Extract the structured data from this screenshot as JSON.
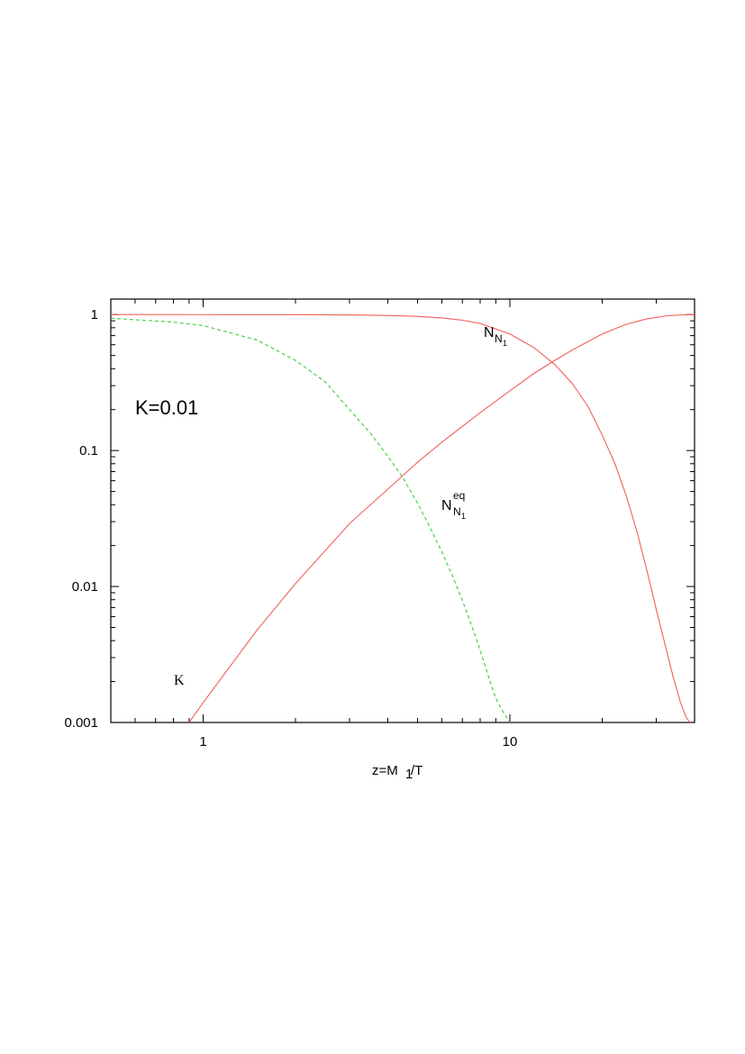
{
  "chart_data": {
    "type": "line",
    "title": "",
    "xlabel": "z=M",
    "xlabel_sub": "1",
    "xlabel_tail": "/T",
    "ylabel": "",
    "x_scale": "log",
    "y_scale": "log",
    "xlim": [
      0.5,
      40
    ],
    "ylim": [
      0.001,
      1.3
    ],
    "x_ticks": [
      {
        "value": 1,
        "label": "1"
      },
      {
        "value": 10,
        "label": "10"
      }
    ],
    "y_ticks": [
      {
        "value": 1,
        "label": "1"
      },
      {
        "value": 0.1,
        "label": "0.1"
      },
      {
        "value": 0.01,
        "label": "0.01"
      },
      {
        "value": 0.001,
        "label": "0.001"
      }
    ],
    "annotation": "K=0.01",
    "series": [
      {
        "name": "N_N1",
        "label_main": "N",
        "label_sub": "N",
        "label_subsub": "1",
        "color": "#f0605a",
        "dash": "solid",
        "x": [
          0.5,
          1,
          2,
          3,
          4,
          5,
          6,
          7,
          8,
          10,
          12,
          14,
          16,
          18,
          20,
          22,
          24,
          26,
          28,
          30,
          32,
          34,
          36,
          37.5,
          38.6
        ],
        "y": [
          1.0,
          0.999,
          0.998,
          0.994,
          0.985,
          0.97,
          0.945,
          0.91,
          0.86,
          0.72,
          0.57,
          0.43,
          0.31,
          0.21,
          0.13,
          0.08,
          0.046,
          0.025,
          0.013,
          0.0068,
          0.0038,
          0.0022,
          0.0014,
          0.0011,
          0.001
        ]
      },
      {
        "name": "N_N1_eq",
        "label_main": "N",
        "label_sub": "N",
        "label_subsub": "1",
        "label_sup": "eq",
        "color": "#3ccc3c",
        "dash": "dashed",
        "x": [
          0.5,
          0.8,
          1,
          1.5,
          2,
          2.5,
          3,
          3.5,
          4,
          4.5,
          5,
          5.5,
          6,
          6.5,
          7,
          7.5,
          8,
          8.5,
          9,
          9.5,
          10
        ],
        "y": [
          0.94,
          0.88,
          0.83,
          0.65,
          0.46,
          0.32,
          0.2,
          0.135,
          0.091,
          0.062,
          0.041,
          0.027,
          0.018,
          0.012,
          0.0079,
          0.0052,
          0.0034,
          0.0022,
          0.0015,
          0.0012,
          0.001
        ]
      },
      {
        "name": "K",
        "label_main": "K",
        "color": "#f0605a",
        "dash": "solid",
        "x": [
          0.9,
          1,
          1.5,
          2,
          3,
          4,
          5,
          6,
          8,
          10,
          12,
          14,
          16,
          20,
          24,
          28,
          32,
          36,
          40
        ],
        "y": [
          0.001,
          0.0014,
          0.0048,
          0.0105,
          0.029,
          0.052,
          0.082,
          0.115,
          0.19,
          0.275,
          0.37,
          0.46,
          0.55,
          0.72,
          0.85,
          0.93,
          0.975,
          0.995,
          1.0
        ]
      }
    ]
  }
}
